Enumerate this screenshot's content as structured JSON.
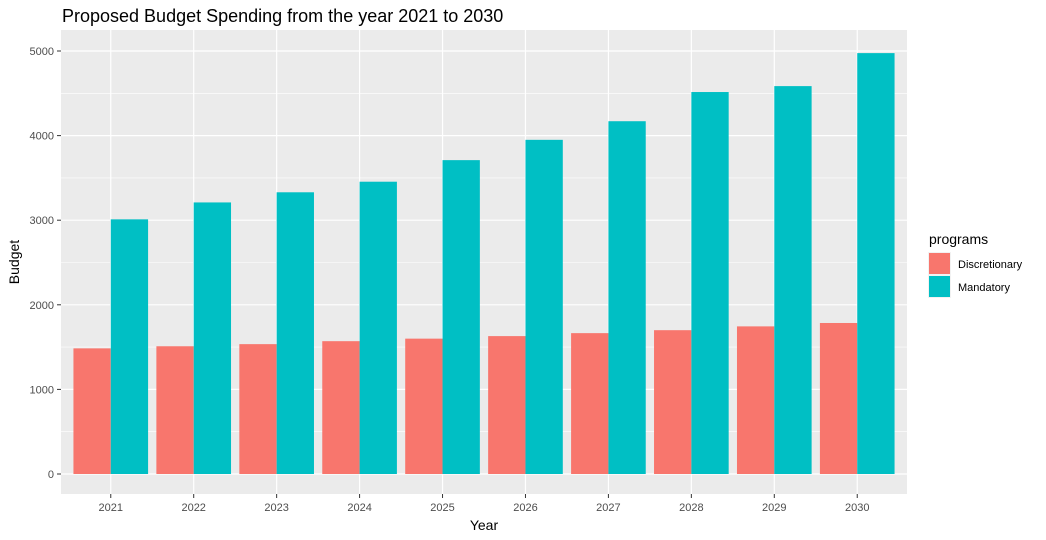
{
  "chart_data": {
    "type": "bar",
    "title": "Proposed Budget Spending from the year 2021  to 2030",
    "xlabel": "Year",
    "ylabel": "Budget",
    "categories": [
      "2021",
      "2022",
      "2023",
      "2024",
      "2025",
      "2026",
      "2027",
      "2028",
      "2029",
      "2030"
    ],
    "series": [
      {
        "name": "Discretionary",
        "color": "#F8766D",
        "values": [
          1485,
          1510,
          1535,
          1570,
          1600,
          1630,
          1665,
          1700,
          1745,
          1785
        ]
      },
      {
        "name": "Mandatory",
        "color": "#00BFC4",
        "values": [
          3010,
          3210,
          3330,
          3455,
          3710,
          3950,
          4170,
          4515,
          4585,
          4975
        ]
      }
    ],
    "yticks": [
      0,
      1000,
      2000,
      3000,
      4000,
      5000
    ],
    "ylim": [
      -233,
      5211
    ],
    "grid": true,
    "bar_layout": "dodge",
    "legend": {
      "title": "programs",
      "position": "right"
    },
    "panel_background": "#EBEBEB",
    "grid_color": "#FFFFFF"
  }
}
